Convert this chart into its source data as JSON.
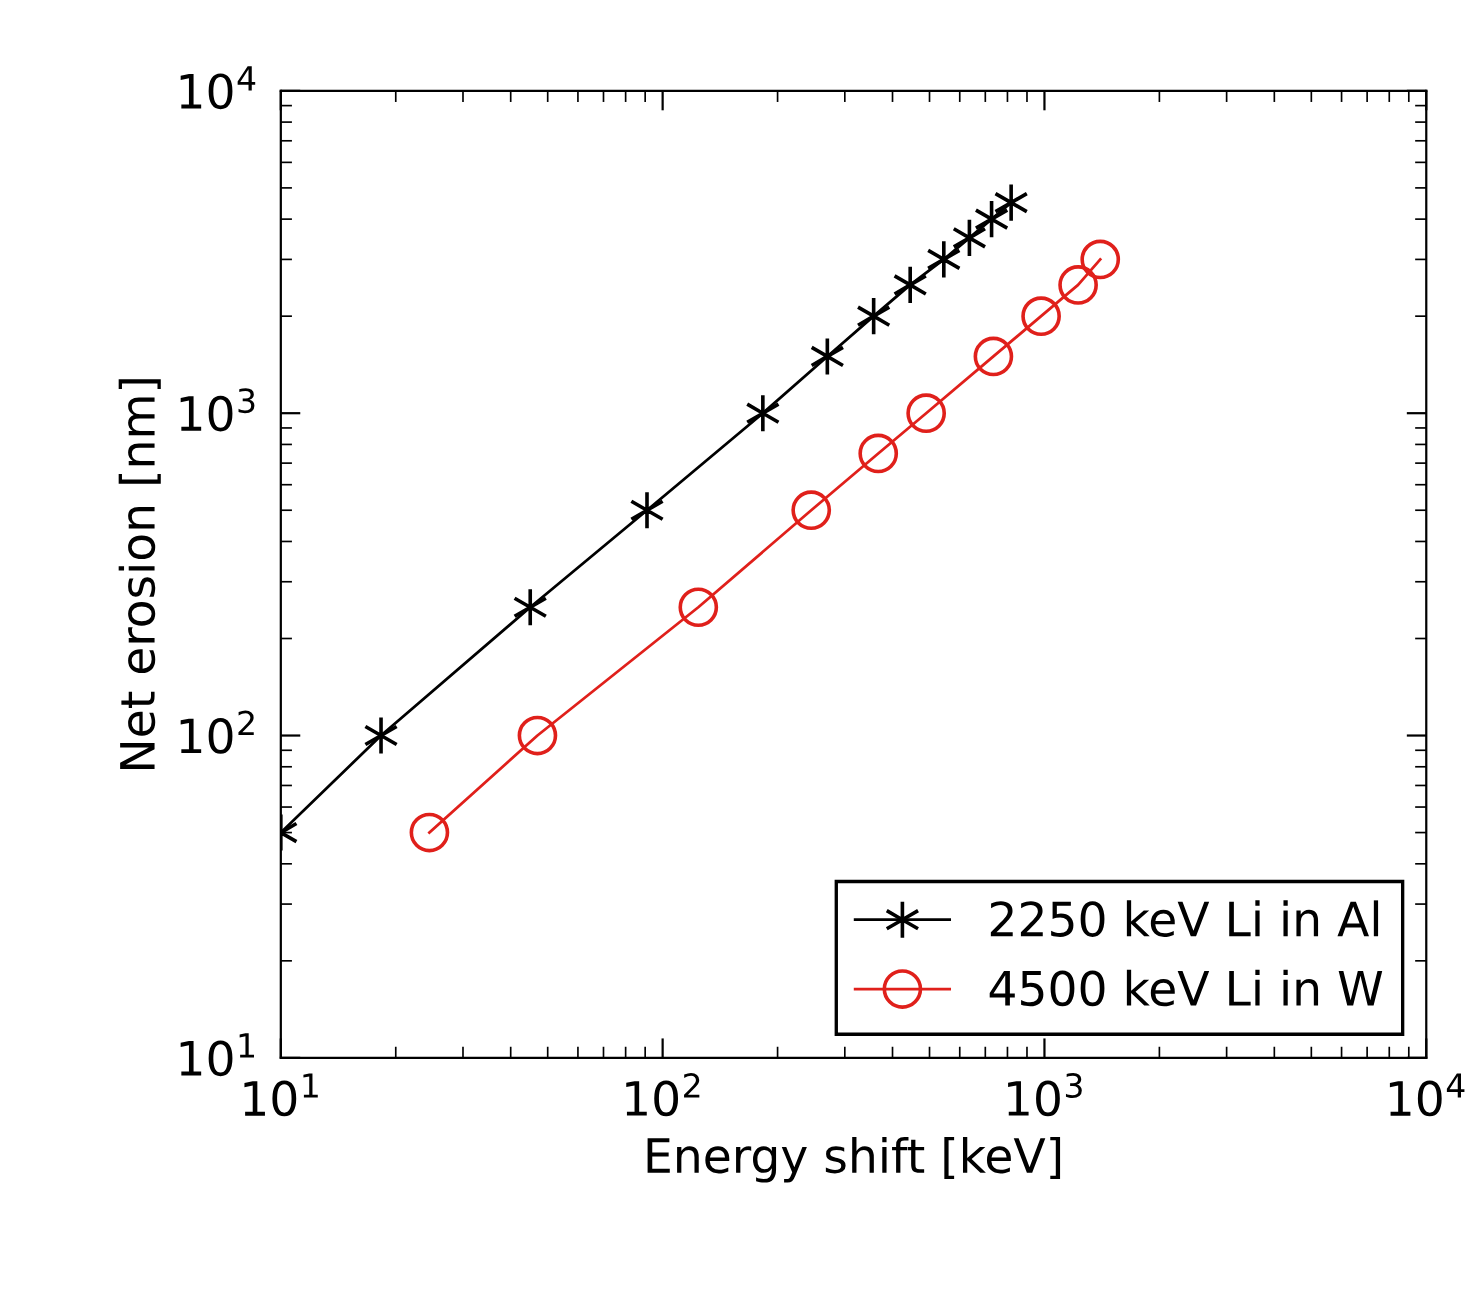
{
  "chart_data": {
    "type": "line",
    "xlabel": "Energy shift [keV]",
    "ylabel": "Net erosion [nm]",
    "log": "xy",
    "xlim": [
      10,
      10000
    ],
    "ylim": [
      10,
      10000
    ],
    "xticks": [
      {
        "value": 10,
        "label": "10$^{1}$"
      },
      {
        "value": 100,
        "label": "10$^{2}$"
      },
      {
        "value": 1000,
        "label": "10$^{3}$"
      },
      {
        "value": 10000,
        "label": "10$^{4}$"
      }
    ],
    "yticks": [
      {
        "value": 10,
        "label": "10$^{1}$"
      },
      {
        "value": 100,
        "label": "10$^{2}$"
      },
      {
        "value": 1000,
        "label": "10$^{3}$"
      },
      {
        "value": 10000,
        "label": "10$^{4}$"
      }
    ],
    "grid": false,
    "legend": "bottom right",
    "series": [
      {
        "name": "2250 keV Li in Al",
        "color": "#000000",
        "marker": "cross",
        "x": [
          10,
          18.3,
          45,
          91,
          183,
          270,
          357,
          445,
          545,
          636,
          727,
          818
        ],
        "values": [
          50,
          100,
          250,
          500,
          1000,
          1500,
          2000,
          2500,
          3000,
          3500,
          4000,
          4500
        ]
      },
      {
        "name": "4500 keV Li in W",
        "color": "#e0201b",
        "marker": "circle",
        "x": [
          24.5,
          47,
          124,
          245,
          367,
          490,
          735,
          980,
          1225,
          1400
        ],
        "values": [
          50,
          100,
          250,
          500,
          750,
          1000,
          1500,
          2000,
          2500,
          3000
        ]
      }
    ]
  }
}
